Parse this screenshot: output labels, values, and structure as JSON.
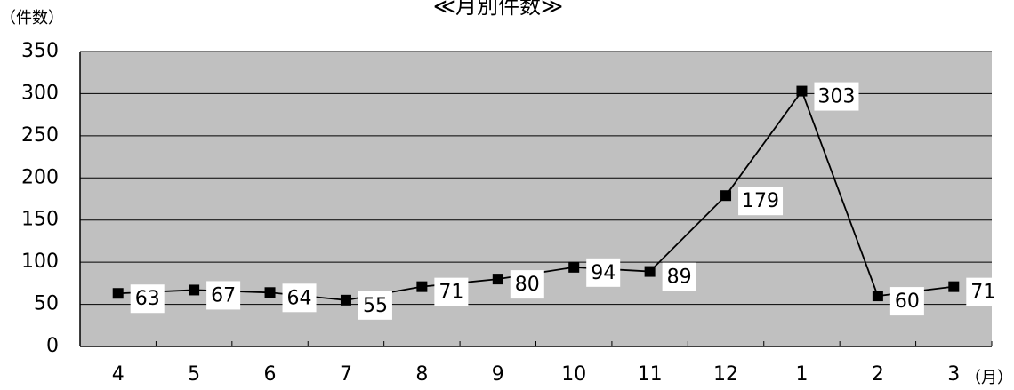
{
  "chart_data": {
    "type": "line",
    "title": "≪月別件数≫",
    "ylabel": "（件数）",
    "xlabel": "（月）",
    "categories": [
      "4",
      "5",
      "6",
      "7",
      "8",
      "9",
      "10",
      "11",
      "12",
      "1",
      "2",
      "3"
    ],
    "series": [
      {
        "values": [
          63,
          67,
          64,
          55,
          71,
          80,
          94,
          89,
          179,
          303,
          60,
          71
        ]
      }
    ],
    "data_labels": [
      "63",
      "67",
      "64",
      "55",
      "71",
      "80",
      "94",
      "89",
      "179",
      "303",
      "60",
      "71"
    ],
    "y_ticks": [
      "0",
      "50",
      "100",
      "150",
      "200",
      "250",
      "300",
      "350"
    ],
    "ylim": [
      0,
      350
    ],
    "grid": true,
    "legend": "none",
    "colors": {
      "plot_background": "#c0c0c0",
      "line": "#000000",
      "marker": "#000000",
      "label_background": "#ffffff"
    }
  }
}
